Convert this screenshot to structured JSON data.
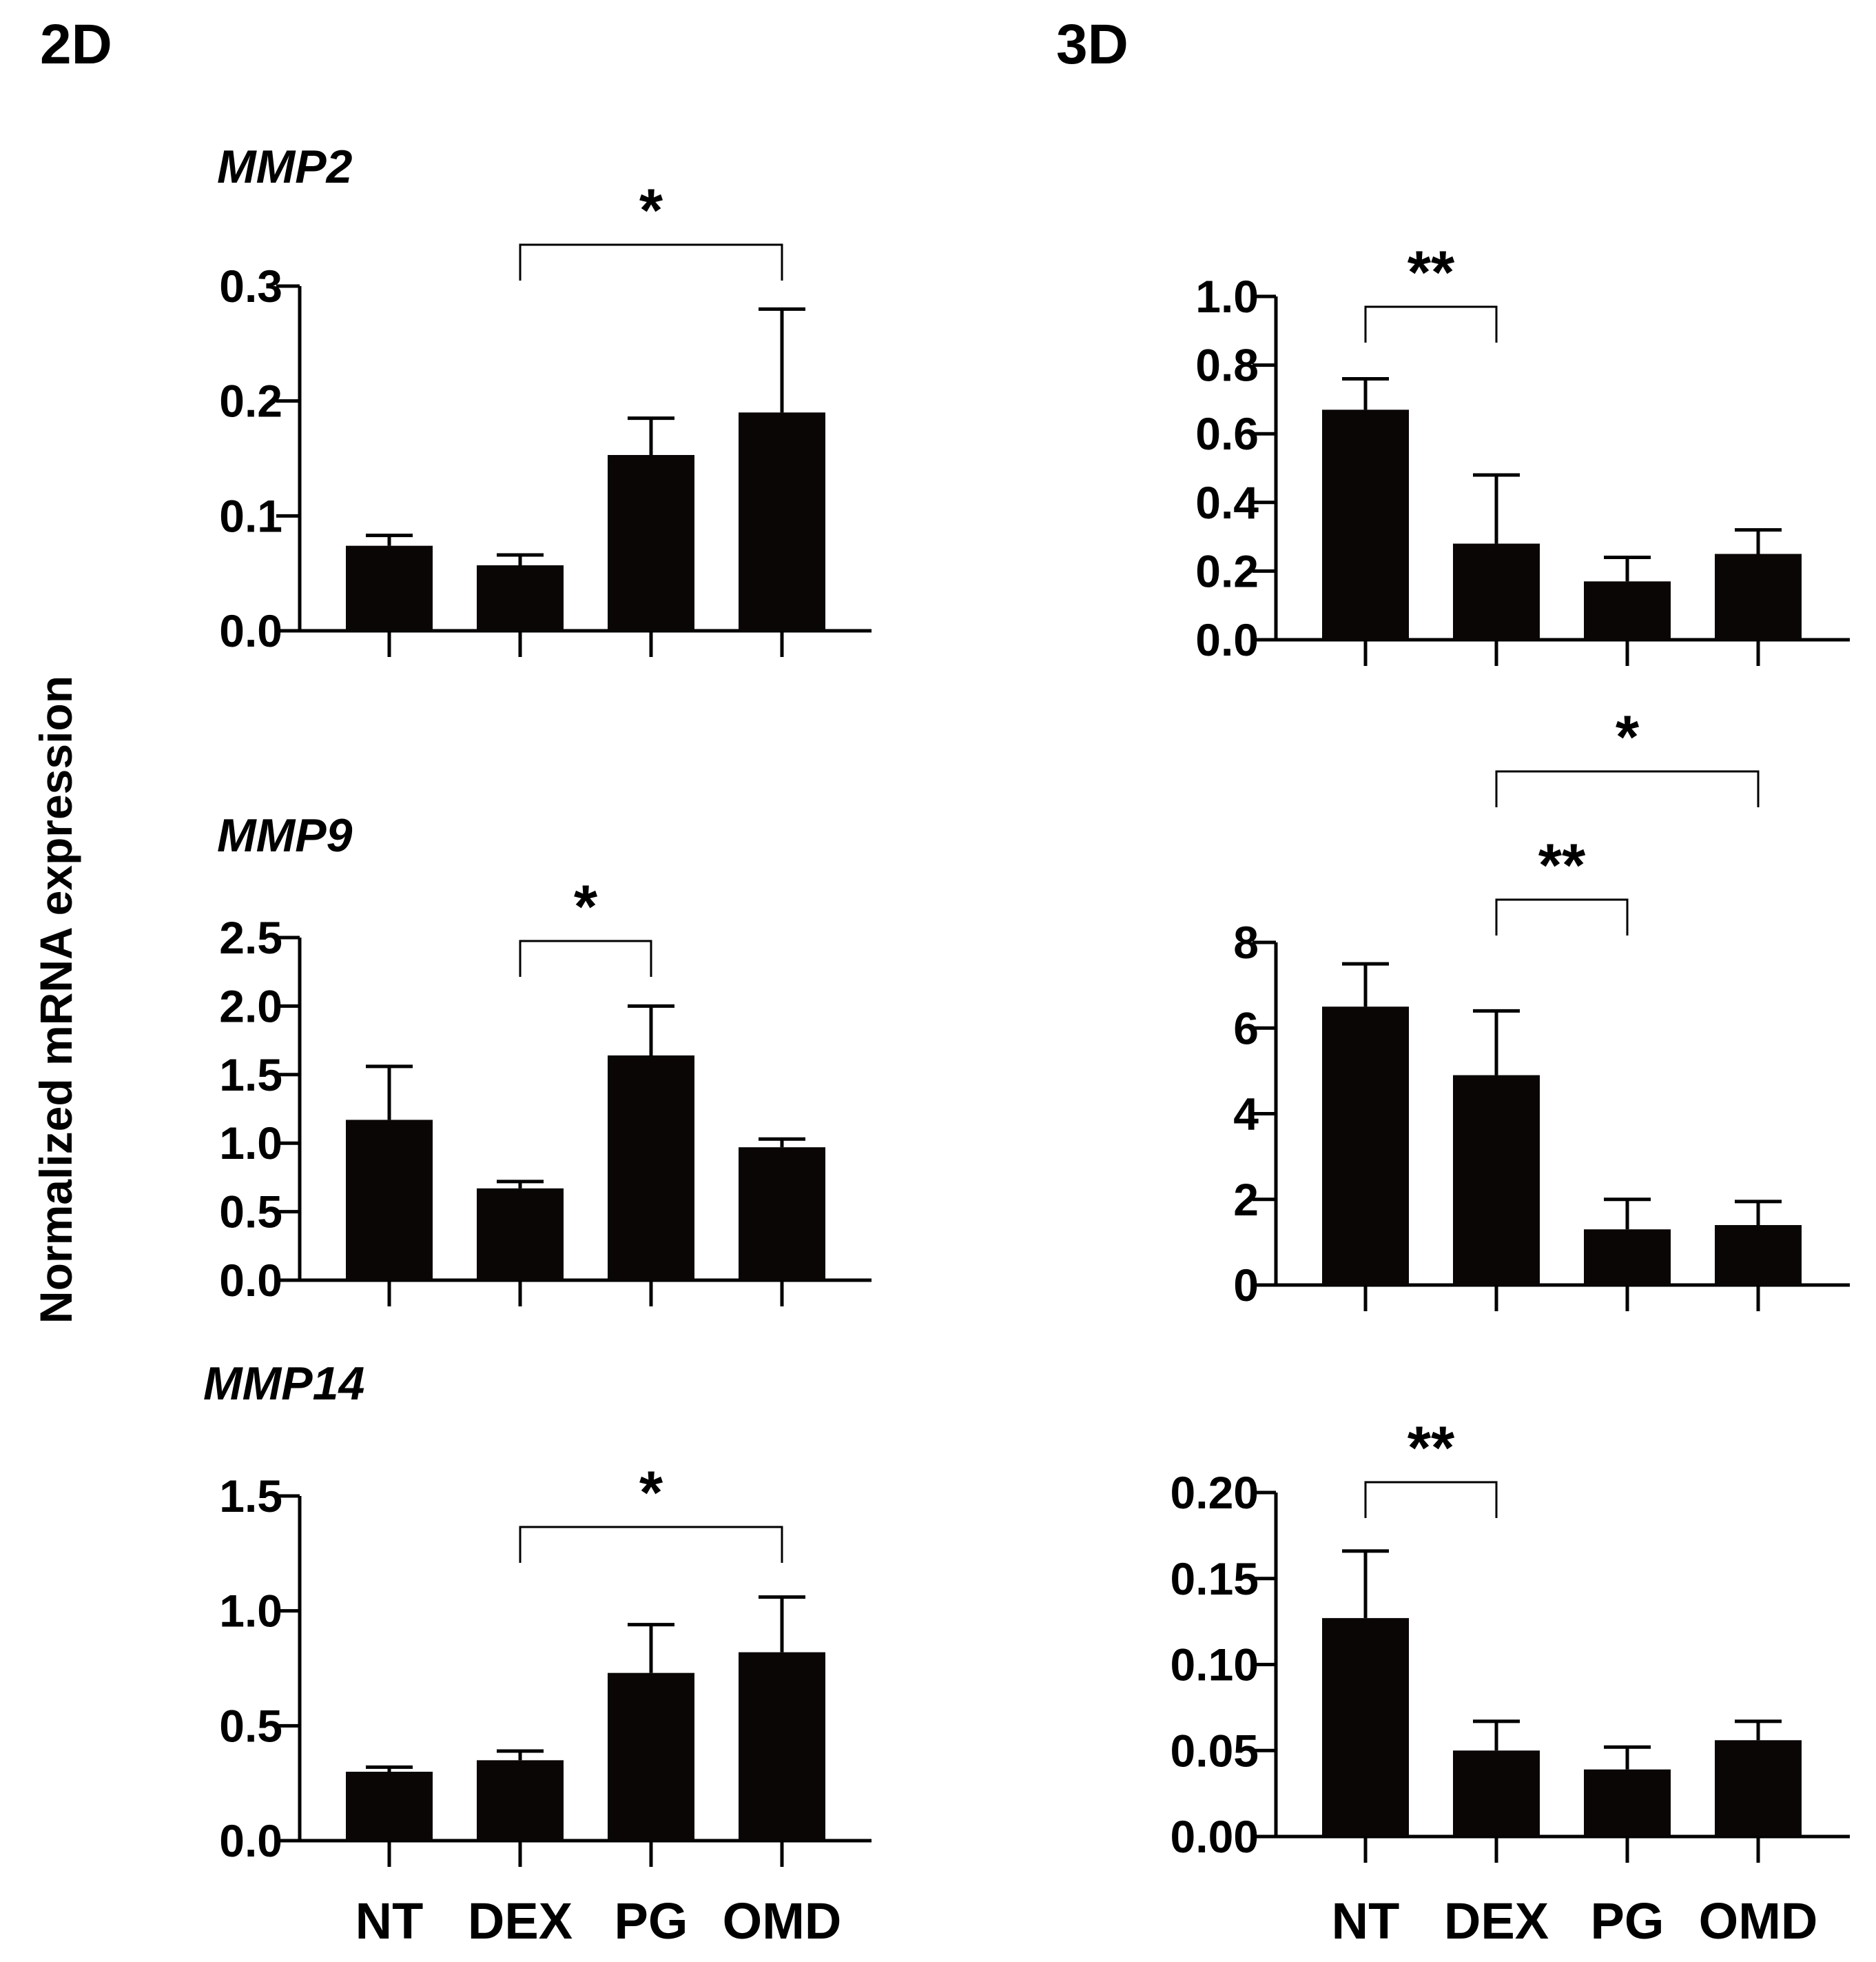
{
  "figure": {
    "panel_titles": [
      "2D",
      "3D"
    ],
    "ylabel": "Normalized mRNA expression"
  },
  "chart_data": [
    {
      "type": "bar",
      "panel": "2D",
      "gene": "MMP2",
      "categories": [
        "NT",
        "DEX",
        "PG",
        "OMD"
      ],
      "values": [
        0.074,
        0.057,
        0.153,
        0.19
      ],
      "errors": [
        0.009,
        0.009,
        0.032,
        0.09
      ],
      "ylim": [
        0,
        0.3
      ],
      "yticks": [
        0.0,
        0.1,
        0.2,
        0.3
      ],
      "ytick_labels": [
        "0.0",
        "0.1",
        "0.2",
        "0.3"
      ],
      "significance": [
        {
          "from": 1,
          "to": 3,
          "label": "*",
          "level": 0
        }
      ]
    },
    {
      "type": "bar",
      "panel": "3D",
      "gene": "MMP2",
      "categories": [
        "NT",
        "DEX",
        "PG",
        "OMD"
      ],
      "values": [
        0.67,
        0.28,
        0.17,
        0.25
      ],
      "errors": [
        0.09,
        0.2,
        0.07,
        0.07
      ],
      "ylim": [
        0,
        1.0
      ],
      "yticks": [
        0.0,
        0.2,
        0.4,
        0.6,
        0.8,
        1.0
      ],
      "ytick_labels": [
        "0.0",
        "0.2",
        "0.4",
        "0.6",
        "0.8",
        "1.0"
      ],
      "significance": [
        {
          "from": 0,
          "to": 1,
          "label": "**",
          "level": 0
        }
      ]
    },
    {
      "type": "bar",
      "panel": "2D",
      "gene": "MMP9",
      "categories": [
        "NT",
        "DEX",
        "PG",
        "OMD"
      ],
      "values": [
        1.17,
        0.67,
        1.64,
        0.97
      ],
      "errors": [
        0.39,
        0.05,
        0.36,
        0.06
      ],
      "ylim": [
        0,
        2.5
      ],
      "yticks": [
        0.0,
        0.5,
        1.0,
        1.5,
        2.0,
        2.5
      ],
      "ytick_labels": [
        "0.0",
        "0.5",
        "1.0",
        "1.5",
        "2.0",
        "2.5"
      ],
      "significance": [
        {
          "from": 1,
          "to": 2,
          "label": "*",
          "level": 0
        }
      ]
    },
    {
      "type": "bar",
      "panel": "3D",
      "gene": "MMP9",
      "categories": [
        "NT",
        "DEX",
        "PG",
        "OMD"
      ],
      "values": [
        6.5,
        4.9,
        1.3,
        1.4
      ],
      "errors": [
        1.0,
        1.5,
        0.7,
        0.55
      ],
      "ylim": [
        0,
        8
      ],
      "yticks": [
        0,
        2,
        4,
        6,
        8
      ],
      "ytick_labels": [
        "0",
        "2",
        "4",
        "6",
        "8"
      ],
      "significance": [
        {
          "from": 1,
          "to": 2,
          "label": "**",
          "level": 0
        },
        {
          "from": 1,
          "to": 3,
          "label": "*",
          "level": 1
        }
      ]
    },
    {
      "type": "bar",
      "panel": "2D",
      "gene": "MMP14",
      "categories": [
        "NT",
        "DEX",
        "PG",
        "OMD"
      ],
      "values": [
        0.3,
        0.35,
        0.73,
        0.82
      ],
      "errors": [
        0.02,
        0.04,
        0.21,
        0.24
      ],
      "ylim": [
        0,
        1.5
      ],
      "yticks": [
        0.0,
        0.5,
        1.0,
        1.5
      ],
      "ytick_labels": [
        "0.0",
        "0.5",
        "1.0",
        "1.5"
      ],
      "significance": [
        {
          "from": 1,
          "to": 3,
          "label": "*",
          "level": 0
        }
      ]
    },
    {
      "type": "bar",
      "panel": "3D",
      "gene": "MMP14",
      "categories": [
        "NT",
        "DEX",
        "PG",
        "OMD"
      ],
      "values": [
        0.127,
        0.05,
        0.039,
        0.056
      ],
      "errors": [
        0.039,
        0.017,
        0.013,
        0.011
      ],
      "ylim": [
        0,
        0.2
      ],
      "yticks": [
        0.0,
        0.05,
        0.1,
        0.15,
        0.2
      ],
      "ytick_labels": [
        "0.00",
        "0.05",
        "0.10",
        "0.15",
        "0.20"
      ],
      "significance": [
        {
          "from": 0,
          "to": 1,
          "label": "**",
          "level": 0
        }
      ]
    }
  ]
}
